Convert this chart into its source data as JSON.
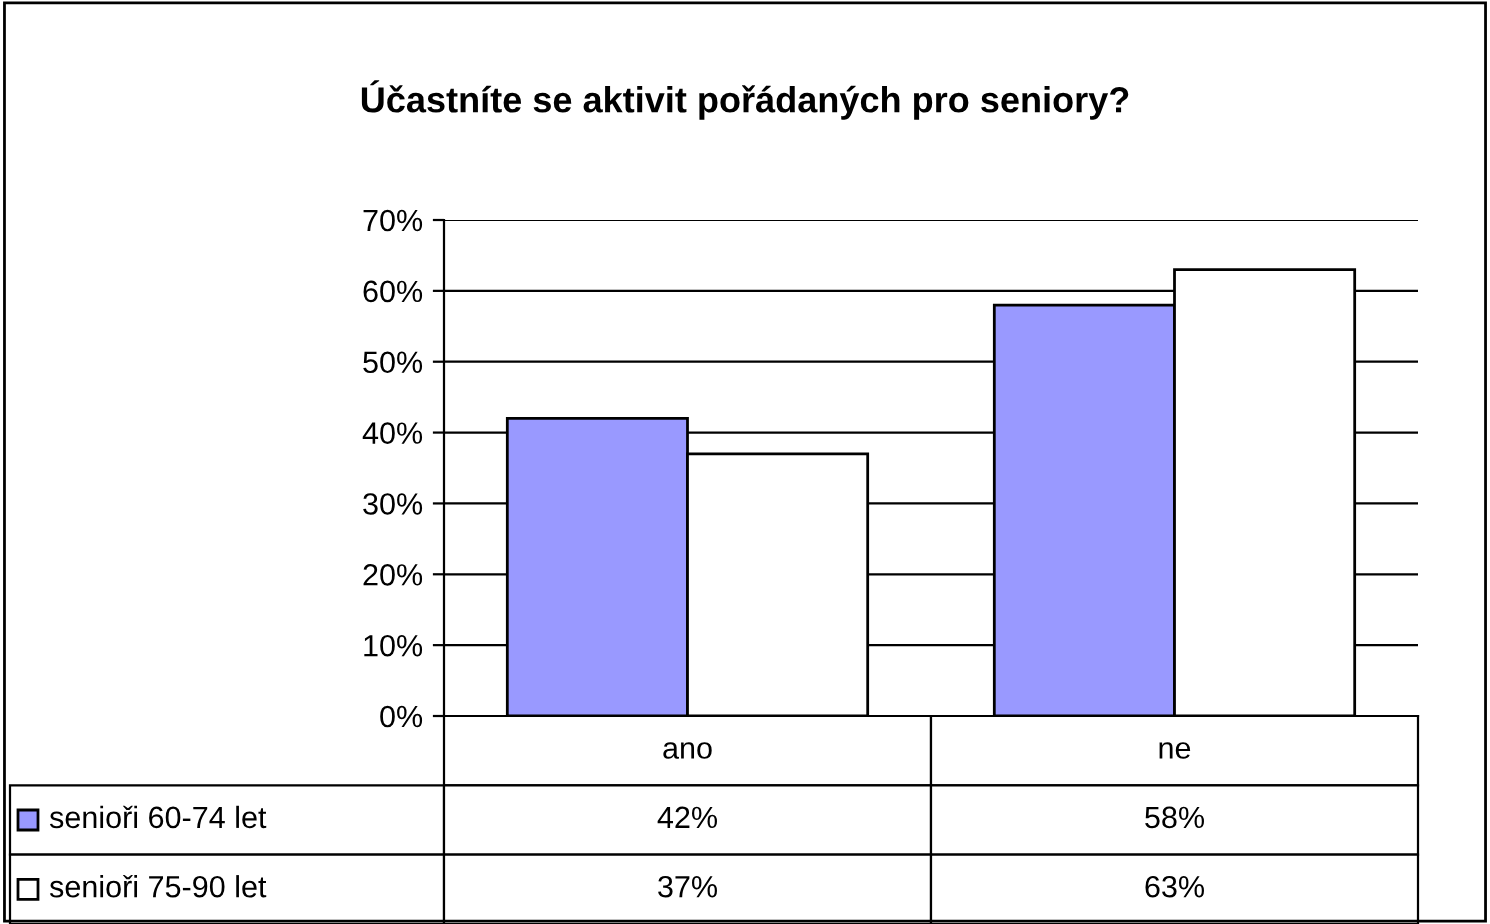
{
  "chart_data": {
    "type": "bar",
    "title": "Účastníte se aktivit pořádaných pro seniory?",
    "categories": [
      "ano",
      "ne"
    ],
    "series": [
      {
        "name": "senioři 60-74 let",
        "color": "#9999ff",
        "values": [
          42,
          58
        ],
        "value_labels": [
          "42%",
          "58%"
        ]
      },
      {
        "name": "senioři 75-90 let",
        "color": "#ffffff",
        "values": [
          37,
          63
        ],
        "value_labels": [
          "37%",
          "63%"
        ]
      }
    ],
    "ylim": [
      0,
      70
    ],
    "yticks": [
      {
        "value": 0,
        "label": "0%"
      },
      {
        "value": 10,
        "label": "10%"
      },
      {
        "value": 20,
        "label": "20%"
      },
      {
        "value": 30,
        "label": "30%"
      },
      {
        "value": 40,
        "label": "40%"
      },
      {
        "value": 50,
        "label": "50%"
      },
      {
        "value": 60,
        "label": "60%"
      },
      {
        "value": 70,
        "label": "70%"
      }
    ],
    "grid": "y",
    "legend": "bottom"
  }
}
